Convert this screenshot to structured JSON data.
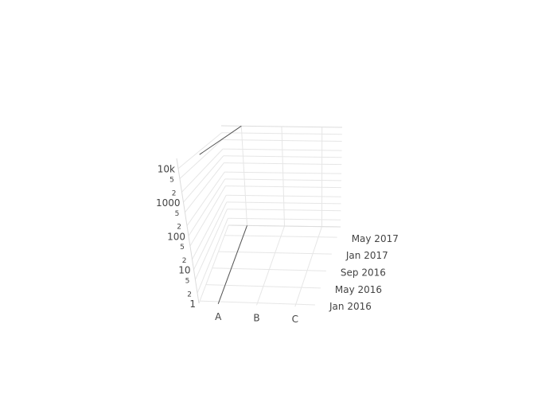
{
  "chart_data": {
    "type": "line",
    "projection": "3d",
    "title": "",
    "x": {
      "tick_labels": [
        "A",
        "B",
        "C"
      ],
      "categories": [
        "A",
        "B",
        "C"
      ]
    },
    "y": {
      "type": "date",
      "tick_labels": [
        "Jan 2016",
        "May 2016",
        "Sep 2016",
        "Jan 2017",
        "May 2017"
      ],
      "range": [
        "2015-12-15",
        "2017-07-15"
      ]
    },
    "z": {
      "type": "log",
      "range": [
        1,
        20000
      ],
      "major_tick_labels": [
        "1",
        "10",
        "100",
        "1000",
        "10k"
      ],
      "minor_tick_labels": [
        "2",
        "5",
        "2",
        "5",
        "2",
        "5",
        "2",
        "5"
      ],
      "minor_tick_values": [
        2,
        5,
        20,
        50,
        200,
        500,
        2000,
        5000
      ]
    },
    "grid": true,
    "series": [
      {
        "x": [
          "A",
          "A",
          "A",
          "A"
        ],
        "y": [
          "2015-12-15",
          "2016-05-01",
          "2017-01-01",
          "2017-07-15"
        ],
        "z": [
          20000,
          20000,
          20000,
          20000
        ],
        "color": "#555555"
      },
      {
        "x": [
          "A",
          "A"
        ],
        "y": [
          "2015-12-15",
          "2017-07-15"
        ],
        "z": [
          1,
          1
        ],
        "color": "#555555"
      }
    ],
    "colors": {
      "line": "#555555",
      "grid": "#e6e6e6",
      "text": "#444444"
    }
  }
}
